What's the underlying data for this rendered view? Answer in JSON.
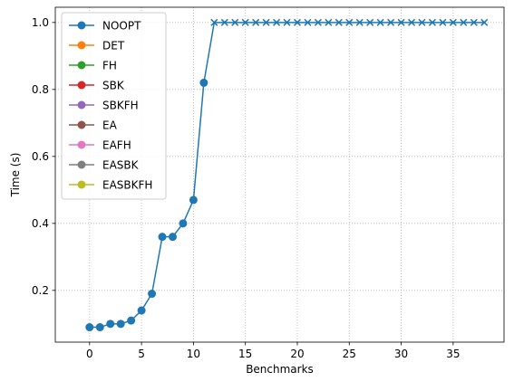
{
  "chart_data": {
    "type": "line",
    "xlabel": "Benchmarks",
    "ylabel": "Time (s)",
    "xlim": [
      -3.3,
      39.9
    ],
    "ylim": [
      0.0455,
      1.0455
    ],
    "xticks": [
      0,
      5,
      10,
      15,
      20,
      25,
      30,
      35
    ],
    "yticks": [
      0.2,
      0.4,
      0.6,
      0.8,
      1.0
    ],
    "xtick_labels": [
      "0",
      "5",
      "10",
      "15",
      "20",
      "25",
      "30",
      "35"
    ],
    "ytick_labels": [
      "0.2",
      "0.4",
      "0.6",
      "0.8",
      "1.0"
    ],
    "grid": true,
    "legend_position": "top-left",
    "series": [
      {
        "name": "NOOPT",
        "color": "#1f77b4",
        "x": [
          0,
          1,
          2,
          3,
          4,
          5,
          6,
          7,
          8,
          9,
          10,
          11,
          12,
          13,
          14,
          15,
          16,
          17,
          18,
          19,
          20,
          21,
          22,
          23,
          24,
          25,
          26,
          27,
          28,
          29,
          30,
          31,
          32,
          33,
          34,
          35,
          36,
          37,
          38
        ],
        "y": [
          0.09,
          0.09,
          0.1,
          0.1,
          0.11,
          0.14,
          0.19,
          0.36,
          0.36,
          0.4,
          0.47,
          0.82,
          1.0,
          1.0,
          1.0,
          1.0,
          1.0,
          1.0,
          1.0,
          1.0,
          1.0,
          1.0,
          1.0,
          1.0,
          1.0,
          1.0,
          1.0,
          1.0,
          1.0,
          1.0,
          1.0,
          1.0,
          1.0,
          1.0,
          1.0,
          1.0,
          1.0,
          1.0,
          1.0
        ],
        "markers": [
          "o",
          "o",
          "o",
          "o",
          "o",
          "o",
          "o",
          "o",
          "o",
          "o",
          "o",
          "o",
          "x",
          "x",
          "x",
          "x",
          "x",
          "x",
          "x",
          "x",
          "x",
          "x",
          "x",
          "x",
          "x",
          "x",
          "x",
          "x",
          "x",
          "x",
          "x",
          "x",
          "x",
          "x",
          "x",
          "x",
          "x",
          "x",
          "x"
        ]
      },
      {
        "name": "DET",
        "color": "#ff7f0e",
        "x": [],
        "y": []
      },
      {
        "name": "FH",
        "color": "#2ca02c",
        "x": [],
        "y": []
      },
      {
        "name": "SBK",
        "color": "#d62728",
        "x": [],
        "y": []
      },
      {
        "name": "SBKFH",
        "color": "#9467bd",
        "x": [],
        "y": []
      },
      {
        "name": "EA",
        "color": "#8c564b",
        "x": [],
        "y": []
      },
      {
        "name": "EAFH",
        "color": "#e377c2",
        "x": [],
        "y": []
      },
      {
        "name": "EASBK",
        "color": "#7f7f7f",
        "x": [],
        "y": []
      },
      {
        "name": "EASBKFH",
        "color": "#bcbd22",
        "x": [],
        "y": []
      }
    ]
  }
}
